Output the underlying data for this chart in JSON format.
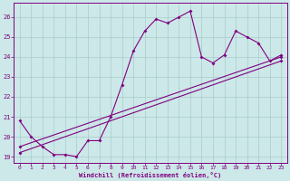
{
  "xlabel": "Windchill (Refroidissement éolien,°C)",
  "bg_color": "#cce8e8",
  "line_color": "#800080",
  "grid_color": "#aacccc",
  "xlim": [
    -0.5,
    23.5
  ],
  "ylim": [
    18.7,
    26.7
  ],
  "yticks": [
    19,
    20,
    21,
    22,
    23,
    24,
    25,
    26
  ],
  "xticks": [
    0,
    1,
    2,
    3,
    4,
    5,
    6,
    7,
    8,
    9,
    10,
    11,
    12,
    13,
    14,
    15,
    16,
    17,
    18,
    19,
    20,
    21,
    22,
    23
  ],
  "series1": [
    [
      0,
      20.8
    ],
    [
      1,
      20.0
    ],
    [
      2,
      19.5
    ],
    [
      3,
      19.1
    ],
    [
      4,
      19.1
    ],
    [
      5,
      19.0
    ],
    [
      6,
      19.8
    ],
    [
      7,
      19.8
    ],
    [
      8,
      21.0
    ],
    [
      9,
      22.6
    ],
    [
      10,
      24.3
    ],
    [
      11,
      25.3
    ],
    [
      12,
      25.9
    ],
    [
      13,
      25.7
    ],
    [
      14,
      26.0
    ],
    [
      15,
      26.3
    ],
    [
      16,
      24.0
    ],
    [
      17,
      23.7
    ],
    [
      18,
      24.1
    ],
    [
      19,
      25.3
    ],
    [
      20,
      25.0
    ],
    [
      21,
      24.7
    ],
    [
      22,
      23.8
    ],
    [
      23,
      24.1
    ]
  ],
  "series2": [
    [
      0,
      19.5
    ],
    [
      23,
      24.0
    ]
  ],
  "series3": [
    [
      0,
      19.2
    ],
    [
      23,
      23.8
    ]
  ]
}
